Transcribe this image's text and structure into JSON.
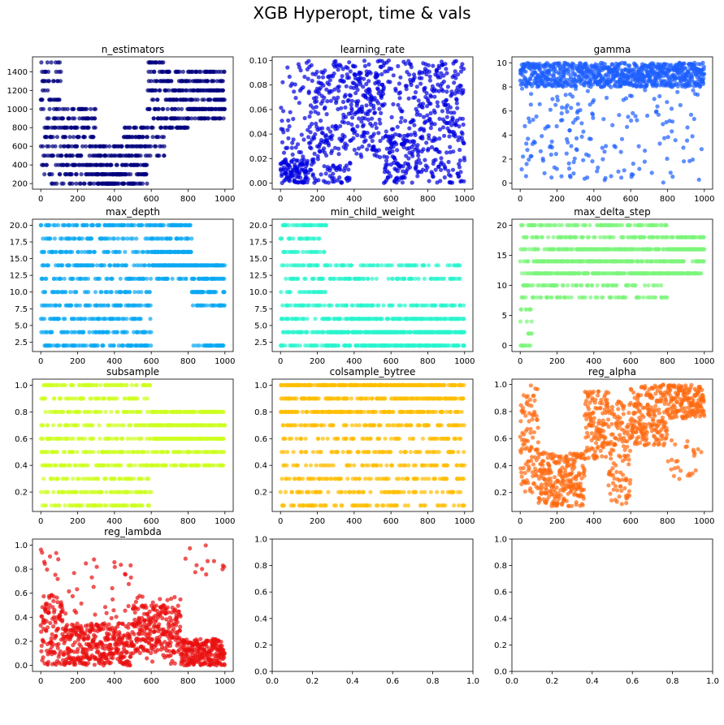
{
  "figure": {
    "title": "XGB Hyperopt, time & vals"
  },
  "chart_data": [
    {
      "type": "scatter",
      "title": "n_estimators",
      "color": "#00007f",
      "xlim": [
        -45,
        1045
      ],
      "ylim": [
        140,
        1560
      ],
      "xticks": [
        0,
        200,
        400,
        600,
        800,
        1000
      ],
      "yticks": [
        200,
        400,
        600,
        800,
        1000,
        1200,
        1400
      ],
      "ytick_labels": [
        "200",
        "400",
        "600",
        "800",
        "1000",
        "1200",
        "1400"
      ],
      "pattern": "n_estimators",
      "n_points": 1000
    },
    {
      "type": "scatter",
      "title": "learning_rate",
      "color": "#0000e0",
      "xlim": [
        -45,
        1045
      ],
      "ylim": [
        -0.005,
        0.103
      ],
      "xticks": [
        0,
        200,
        400,
        600,
        800,
        1000
      ],
      "yticks": [
        0,
        0.02,
        0.04,
        0.06,
        0.08,
        0.1
      ],
      "ytick_labels": [
        "0.00",
        "0.02",
        "0.04",
        "0.06",
        "0.08",
        "0.10"
      ],
      "pattern": "learning_rate",
      "n_points": 1000
    },
    {
      "type": "scatter",
      "title": "gamma",
      "color": "#1c5eff",
      "xlim": [
        -45,
        1045
      ],
      "ylim": [
        -0.5,
        10.5
      ],
      "xticks": [
        0,
        200,
        400,
        600,
        800,
        1000
      ],
      "yticks": [
        0,
        2,
        4,
        6,
        8,
        10
      ],
      "ytick_labels": [
        "0",
        "2",
        "4",
        "6",
        "8",
        "10"
      ],
      "pattern": "gamma",
      "n_points": 1000
    },
    {
      "type": "scatter",
      "title": "max_depth",
      "color": "#0aa8f2",
      "xlim": [
        -45,
        1045
      ],
      "ylim": [
        1.1,
        20.9
      ],
      "xticks": [
        0,
        200,
        400,
        600,
        800,
        1000
      ],
      "yticks": [
        2.5,
        5.0,
        7.5,
        10.0,
        12.5,
        15.0,
        17.5,
        20.0
      ],
      "ytick_labels": [
        "2.5",
        "5.0",
        "7.5",
        "10.0",
        "12.5",
        "15.0",
        "17.5",
        "20.0"
      ],
      "pattern": "max_depth",
      "n_points": 1000
    },
    {
      "type": "scatter",
      "title": "min_child_weight",
      "color": "#28f5cd",
      "xlim": [
        -45,
        1045
      ],
      "ylim": [
        1.1,
        20.9
      ],
      "xticks": [
        0,
        200,
        400,
        600,
        800,
        1000
      ],
      "yticks": [
        2.5,
        5.0,
        7.5,
        10.0,
        12.5,
        15.0,
        17.5,
        20.0
      ],
      "ytick_labels": [
        "2.5",
        "5.0",
        "7.5",
        "10.0",
        "12.5",
        "15.0",
        "17.5",
        "20.0"
      ],
      "pattern": "min_child_weight",
      "n_points": 1000
    },
    {
      "type": "scatter",
      "title": "max_delta_step",
      "color": "#7cf57a",
      "xlim": [
        -45,
        1045
      ],
      "ylim": [
        -1,
        21
      ],
      "xticks": [
        0,
        200,
        400,
        600,
        800,
        1000
      ],
      "yticks": [
        0,
        5,
        10,
        15,
        20
      ],
      "ytick_labels": [
        "0",
        "5",
        "10",
        "15",
        "20"
      ],
      "pattern": "max_delta_step",
      "n_points": 1000
    },
    {
      "type": "scatter",
      "title": "subsample",
      "color": "#cdff1f",
      "xlim": [
        -45,
        1045
      ],
      "ylim": [
        0.055,
        1.045
      ],
      "xticks": [
        0,
        200,
        400,
        600,
        800,
        1000
      ],
      "yticks": [
        0.2,
        0.4,
        0.6,
        0.8,
        1.0
      ],
      "ytick_labels": [
        "0.2",
        "0.4",
        "0.6",
        "0.8",
        "1.0"
      ],
      "pattern": "subsample",
      "n_points": 1000
    },
    {
      "type": "scatter",
      "title": "colsample_bytree",
      "color": "#ffbd00",
      "xlim": [
        -45,
        1045
      ],
      "ylim": [
        0.055,
        1.045
      ],
      "xticks": [
        0,
        200,
        400,
        600,
        800,
        1000
      ],
      "yticks": [
        0.2,
        0.4,
        0.6,
        0.8,
        1.0
      ],
      "ytick_labels": [
        "0.2",
        "0.4",
        "0.6",
        "0.8",
        "1.0"
      ],
      "pattern": "colsample_bytree",
      "n_points": 1000
    },
    {
      "type": "scatter",
      "title": "reg_alpha",
      "color": "#ff6a10",
      "xlim": [
        -45,
        1045
      ],
      "ylim": [
        0.06,
        1.04
      ],
      "xticks": [
        0,
        200,
        400,
        600,
        800,
        1000
      ],
      "yticks": [
        0.2,
        0.4,
        0.6,
        0.8,
        1.0
      ],
      "ytick_labels": [
        "0.2",
        "0.4",
        "0.6",
        "0.8",
        "1.0"
      ],
      "pattern": "reg_alpha",
      "n_points": 1000
    },
    {
      "type": "scatter",
      "title": "reg_lambda",
      "color": "#ea0e0e",
      "xlim": [
        -45,
        1045
      ],
      "ylim": [
        -0.05,
        1.05
      ],
      "xticks": [
        0,
        200,
        400,
        600,
        800,
        1000
      ],
      "yticks": [
        0,
        0.2,
        0.4,
        0.6,
        0.8,
        1.0
      ],
      "ytick_labels": [
        "0.0",
        "0.2",
        "0.4",
        "0.6",
        "0.8",
        "1.0"
      ],
      "pattern": "reg_lambda",
      "n_points": 1000
    },
    {
      "type": "scatter",
      "title": "",
      "color": "#000000",
      "xlim": [
        0,
        1
      ],
      "ylim": [
        0,
        1
      ],
      "xticks": [
        0,
        0.2,
        0.4,
        0.6,
        0.8,
        1.0
      ],
      "xtick_labels": [
        "0.0",
        "0.2",
        "0.4",
        "0.6",
        "0.8",
        "1.0"
      ],
      "yticks": [
        0,
        0.2,
        0.4,
        0.6,
        0.8,
        1.0
      ],
      "ytick_labels": [
        "0.0",
        "0.2",
        "0.4",
        "0.6",
        "0.8",
        "1.0"
      ],
      "pattern": "empty",
      "n_points": 0
    },
    {
      "type": "scatter",
      "title": "",
      "color": "#000000",
      "xlim": [
        0,
        1
      ],
      "ylim": [
        0,
        1
      ],
      "xticks": [
        0,
        0.2,
        0.4,
        0.6,
        0.8,
        1.0
      ],
      "xtick_labels": [
        "0.0",
        "0.2",
        "0.4",
        "0.6",
        "0.8",
        "1.0"
      ],
      "yticks": [
        0,
        0.2,
        0.4,
        0.6,
        0.8,
        1.0
      ],
      "ytick_labels": [
        "0.0",
        "0.2",
        "0.4",
        "0.6",
        "0.8",
        "1.0"
      ],
      "pattern": "empty",
      "n_points": 0
    }
  ]
}
